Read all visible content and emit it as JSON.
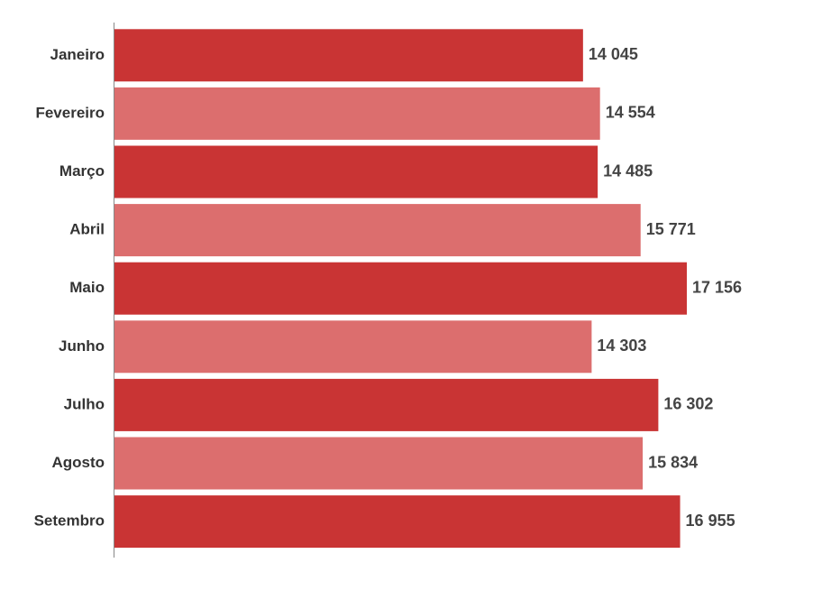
{
  "chart_data": {
    "type": "bar",
    "orientation": "horizontal",
    "categories": [
      "Janeiro",
      "Fevereiro",
      "Março",
      "Abril",
      "Maio",
      "Junho",
      "Julho",
      "Agosto",
      "Setembro"
    ],
    "values": [
      14045,
      14554,
      14485,
      15771,
      17156,
      14303,
      16302,
      15834,
      16955
    ],
    "value_labels": [
      "14 045",
      "14 554",
      "14 485",
      "15 771",
      "17 156",
      "14 303",
      "16 302",
      "15 834",
      "16 955"
    ],
    "colors": [
      "#c93434",
      "#dc6e6e",
      "#c93434",
      "#dc6e6e",
      "#c93434",
      "#dc6e6e",
      "#c93434",
      "#dc6e6e",
      "#c93434"
    ]
  }
}
